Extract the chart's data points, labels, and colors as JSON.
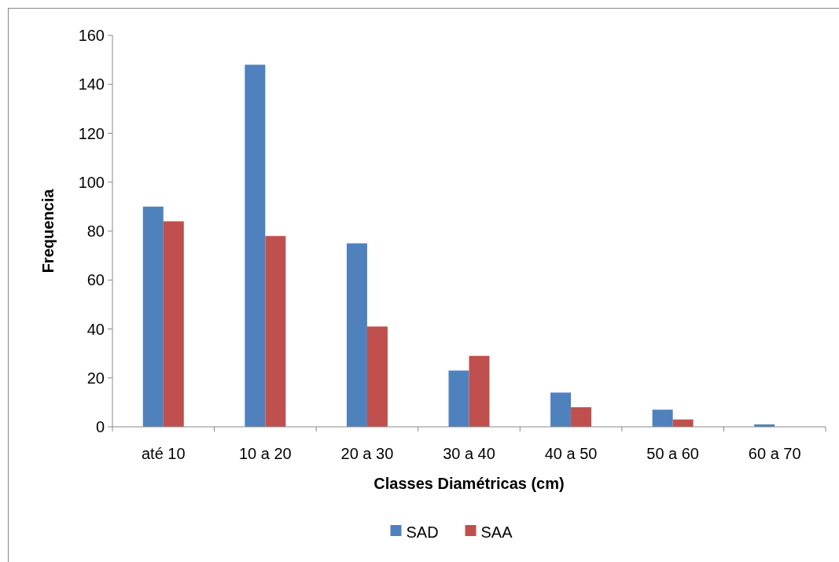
{
  "chart_data": {
    "type": "bar",
    "xlabel": "Classes Diamétricas (cm)",
    "ylabel": "Frequencia",
    "categories": [
      "até 10",
      "10 a 20",
      "20 a 30",
      "30 a 40",
      "40 a 50",
      "50 a 60",
      "60 a 70"
    ],
    "series": [
      {
        "name": "SAD",
        "color": "#4f81bd",
        "values": [
          90,
          148,
          75,
          23,
          14,
          7,
          1
        ]
      },
      {
        "name": "SAA",
        "color": "#c0504d",
        "values": [
          84,
          78,
          41,
          29,
          8,
          3,
          0
        ]
      }
    ],
    "ylim": [
      0,
      160
    ],
    "yticks": [
      0,
      20,
      40,
      60,
      80,
      100,
      120,
      140,
      160
    ],
    "grid": false,
    "legend": "bottom"
  }
}
